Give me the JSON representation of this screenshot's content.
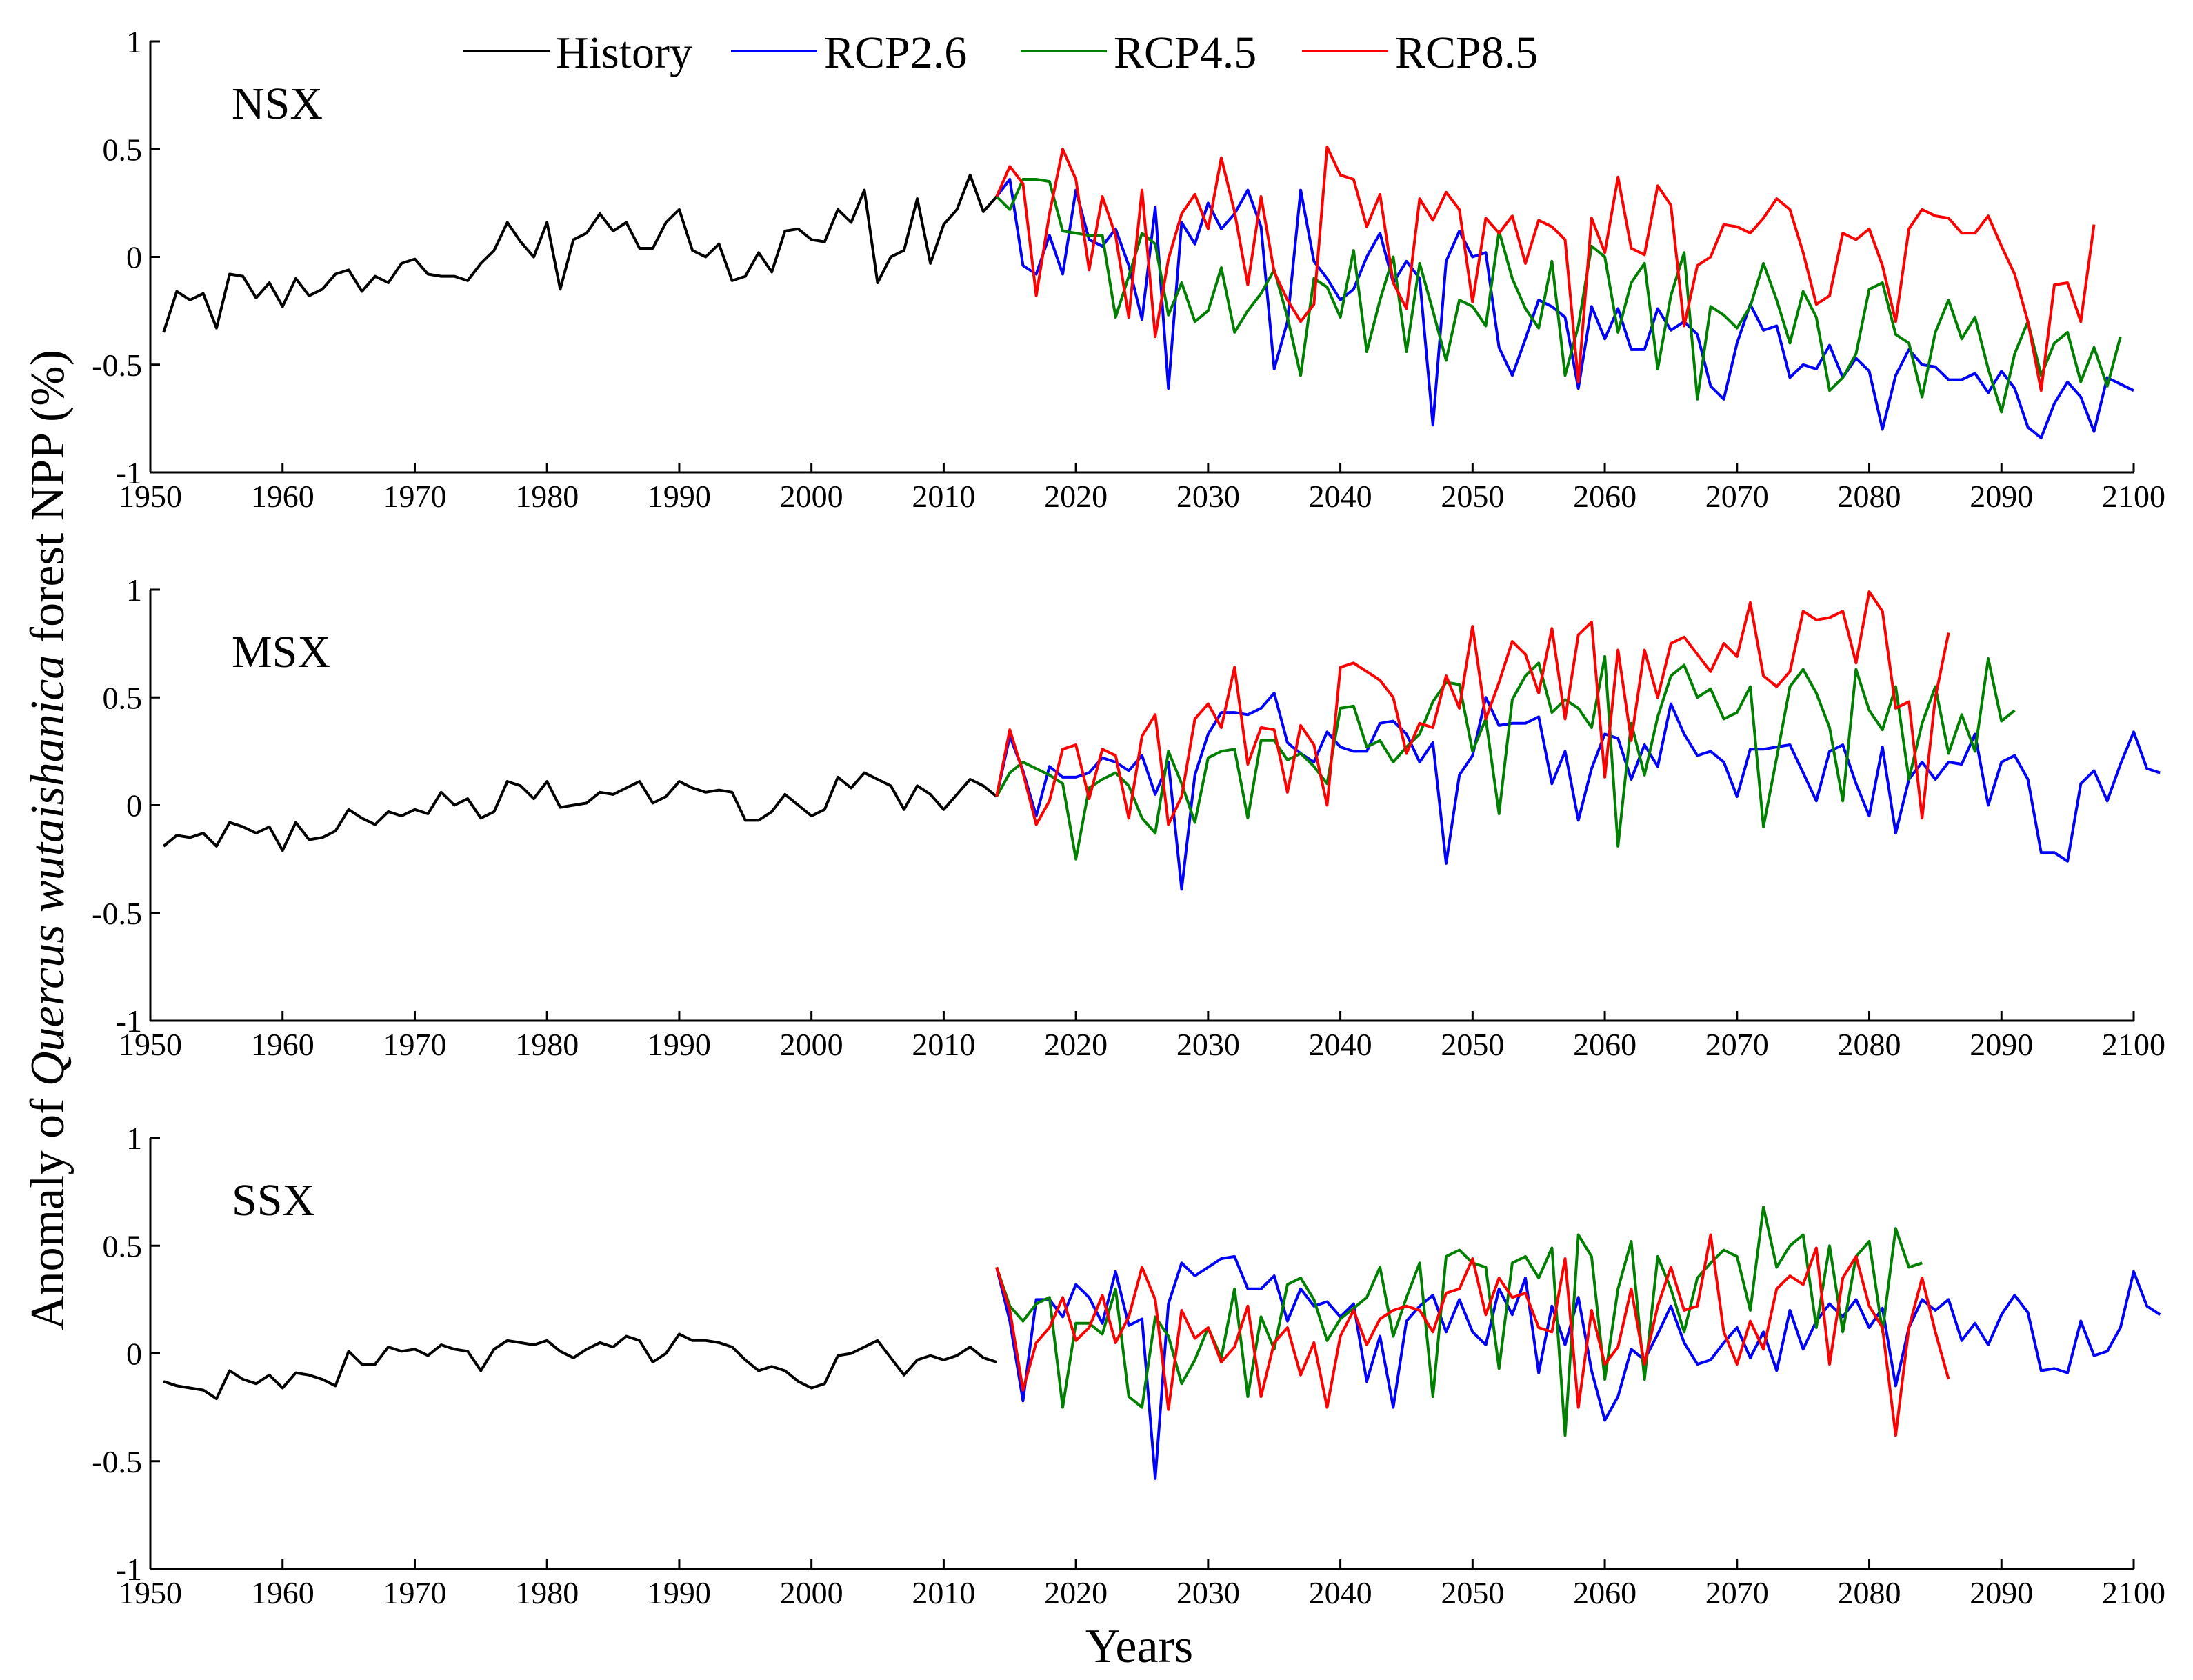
{
  "chart_data": {
    "type": "line",
    "ylabel_prefix": "Anomaly of ",
    "ylabel_species": "Quercus wutaishanica",
    "ylabel_suffix": " forest NPP (%)",
    "xlabel": "Years",
    "xlim": [
      1950,
      2100
    ],
    "ylim": [
      -1,
      1
    ],
    "xticks": [
      1950,
      1960,
      1970,
      1980,
      1990,
      2000,
      2010,
      2020,
      2030,
      2040,
      2050,
      2060,
      2070,
      2080,
      2090,
      2100
    ],
    "yticks": [
      -1,
      -0.5,
      0,
      0.5,
      1
    ],
    "ytick_labels": [
      "-1",
      "-0.5",
      "0",
      "0.5",
      "1"
    ],
    "legend": [
      {
        "name": "History",
        "color": "#000000"
      },
      {
        "name": "RCP2.6",
        "color": "#0000ff"
      },
      {
        "name": "RCP4.5",
        "color": "#008000"
      },
      {
        "name": "RCP8.5",
        "color": "#ff0000"
      }
    ],
    "history_x_start": 1951,
    "future_x_start": 2014,
    "panels": [
      {
        "label": "NSX",
        "history": [
          -0.35,
          -0.16,
          -0.2,
          -0.17,
          -0.33,
          -0.08,
          -0.09,
          -0.19,
          -0.12,
          -0.23,
          -0.1,
          -0.18,
          -0.15,
          -0.08,
          -0.06,
          -0.16,
          -0.09,
          -0.12,
          -0.03,
          -0.01,
          -0.08,
          -0.09,
          -0.09,
          -0.11,
          -0.03,
          0.03,
          0.16,
          0.07,
          0.0,
          0.16,
          -0.15,
          0.08,
          0.11,
          0.2,
          0.12,
          0.16,
          0.04,
          0.04,
          0.16,
          0.22,
          0.03,
          0.0,
          0.06,
          -0.11,
          -0.09,
          0.02,
          -0.07,
          0.12,
          0.13,
          0.08,
          0.07,
          0.22,
          0.16,
          0.31,
          -0.12,
          0.0,
          0.03,
          0.27,
          -0.03,
          0.15,
          0.22,
          0.38,
          0.21,
          0.28
        ],
        "rcp26": [
          0.28,
          0.36,
          -0.04,
          -0.08,
          0.1,
          -0.08,
          0.31,
          0.08,
          0.05,
          0.13,
          -0.04,
          -0.29,
          0.23,
          -0.61,
          0.16,
          0.06,
          0.25,
          0.13,
          0.2,
          0.31,
          0.14,
          -0.52,
          -0.3,
          0.31,
          -0.02,
          -0.1,
          -0.2,
          -0.15,
          0.0,
          0.11,
          -0.12,
          -0.02,
          -0.1,
          -0.78,
          -0.02,
          0.12,
          0.0,
          0.02,
          -0.42,
          -0.55,
          -0.38,
          -0.2,
          -0.23,
          -0.28,
          -0.61,
          -0.23,
          -0.38,
          -0.24,
          -0.43,
          -0.43,
          -0.24,
          -0.34,
          -0.3,
          -0.36,
          -0.6,
          -0.66,
          -0.4,
          -0.22,
          -0.34,
          -0.32,
          -0.56,
          -0.5,
          -0.52,
          -0.41,
          -0.56,
          -0.47,
          -0.53,
          -0.8,
          -0.55,
          -0.43,
          -0.5,
          -0.51,
          -0.57,
          -0.57,
          -0.54,
          -0.63,
          -0.53,
          -0.61,
          -0.79,
          -0.84,
          -0.68,
          -0.58,
          -0.65,
          -0.81,
          -0.56,
          -0.59,
          -0.62
        ],
        "rcp45": [
          0.28,
          0.22,
          0.36,
          0.36,
          0.35,
          0.12,
          0.11,
          0.1,
          0.1,
          -0.28,
          -0.09,
          0.11,
          0.06,
          -0.27,
          -0.12,
          -0.3,
          -0.25,
          -0.05,
          -0.35,
          -0.25,
          -0.17,
          -0.06,
          -0.28,
          -0.55,
          -0.1,
          -0.14,
          -0.28,
          0.03,
          -0.44,
          -0.2,
          0.0,
          -0.44,
          -0.03,
          -0.25,
          -0.48,
          -0.2,
          -0.23,
          -0.32,
          0.12,
          -0.1,
          -0.24,
          -0.33,
          -0.02,
          -0.55,
          -0.32,
          0.05,
          0.0,
          -0.35,
          -0.12,
          -0.03,
          -0.52,
          -0.18,
          0.02,
          -0.66,
          -0.23,
          -0.27,
          -0.33,
          -0.23,
          -0.03,
          -0.2,
          -0.4,
          -0.16,
          -0.28,
          -0.62,
          -0.56,
          -0.45,
          -0.15,
          -0.12,
          -0.36,
          -0.4,
          -0.65,
          -0.35,
          -0.2,
          -0.38,
          -0.28,
          -0.52,
          -0.72,
          -0.45,
          -0.3,
          -0.55,
          -0.4,
          -0.35,
          -0.58,
          -0.42,
          -0.6,
          -0.37
        ],
        "rcp85": [
          0.28,
          0.42,
          0.34,
          -0.18,
          0.2,
          0.5,
          0.36,
          -0.06,
          0.28,
          0.1,
          -0.28,
          0.31,
          -0.37,
          -0.01,
          0.2,
          0.29,
          0.13,
          0.46,
          0.21,
          -0.13,
          0.28,
          -0.07,
          -0.2,
          -0.3,
          -0.22,
          0.51,
          0.38,
          0.36,
          0.14,
          0.29,
          -0.12,
          -0.24,
          0.27,
          0.17,
          0.3,
          0.22,
          -0.21,
          0.18,
          0.11,
          0.19,
          -0.03,
          0.17,
          0.14,
          0.08,
          -0.58,
          0.18,
          0.02,
          0.37,
          0.04,
          0.01,
          0.33,
          0.24,
          -0.32,
          -0.04,
          0.0,
          0.15,
          0.14,
          0.11,
          0.18,
          0.27,
          0.22,
          0.02,
          -0.22,
          -0.18,
          0.11,
          0.08,
          0.13,
          -0.04,
          -0.3,
          0.13,
          0.22,
          0.19,
          0.18,
          0.11,
          0.11,
          0.19,
          0.05,
          -0.08,
          -0.3,
          -0.62,
          -0.13,
          -0.12,
          -0.3,
          0.15
        ]
      },
      {
        "label": "MSX",
        "history": [
          -0.19,
          -0.14,
          -0.15,
          -0.13,
          -0.19,
          -0.08,
          -0.1,
          -0.13,
          -0.1,
          -0.21,
          -0.08,
          -0.16,
          -0.15,
          -0.12,
          -0.02,
          -0.06,
          -0.09,
          -0.03,
          -0.05,
          -0.02,
          -0.04,
          0.06,
          0.0,
          0.03,
          -0.06,
          -0.03,
          0.11,
          0.09,
          0.03,
          0.11,
          -0.01,
          0.0,
          0.01,
          0.06,
          0.05,
          0.08,
          0.11,
          0.01,
          0.04,
          0.11,
          0.08,
          0.06,
          0.07,
          0.06,
          -0.07,
          -0.07,
          -0.03,
          0.05,
          0.0,
          -0.05,
          -0.02,
          0.13,
          0.08,
          0.15,
          0.12,
          0.09,
          -0.02,
          0.09,
          0.05,
          -0.02,
          0.05,
          0.12,
          0.09,
          0.04
        ],
        "rcp26": [
          0.04,
          0.32,
          0.16,
          -0.05,
          0.18,
          0.13,
          0.13,
          0.15,
          0.22,
          0.2,
          0.16,
          0.23,
          0.05,
          0.2,
          -0.39,
          0.14,
          0.33,
          0.43,
          0.43,
          0.42,
          0.45,
          0.52,
          0.29,
          0.24,
          0.2,
          0.34,
          0.27,
          0.25,
          0.25,
          0.38,
          0.39,
          0.33,
          0.2,
          0.29,
          -0.27,
          0.14,
          0.23,
          0.5,
          0.37,
          0.38,
          0.38,
          0.41,
          0.1,
          0.25,
          -0.07,
          0.17,
          0.33,
          0.31,
          0.12,
          0.28,
          0.18,
          0.47,
          0.33,
          0.23,
          0.25,
          0.2,
          0.04,
          0.26,
          0.26,
          0.27,
          0.28,
          0.15,
          0.02,
          0.25,
          0.28,
          0.1,
          -0.05,
          0.27,
          -0.13,
          0.12,
          0.2,
          0.12,
          0.2,
          0.19,
          0.33,
          0.0,
          0.2,
          0.23,
          0.12,
          -0.22,
          -0.22,
          -0.26,
          0.1,
          0.16,
          0.02,
          0.19,
          0.34,
          0.17,
          0.15
        ],
        "rcp45": [
          0.04,
          0.15,
          0.2,
          0.17,
          0.14,
          0.1,
          -0.25,
          0.08,
          0.12,
          0.15,
          0.09,
          -0.06,
          -0.13,
          0.25,
          0.1,
          -0.08,
          0.22,
          0.25,
          0.26,
          -0.06,
          0.3,
          0.3,
          0.21,
          0.24,
          0.18,
          0.1,
          0.45,
          0.46,
          0.27,
          0.3,
          0.2,
          0.27,
          0.33,
          0.48,
          0.57,
          0.56,
          0.25,
          0.4,
          -0.04,
          0.49,
          0.6,
          0.66,
          0.43,
          0.49,
          0.45,
          0.36,
          0.69,
          -0.19,
          0.38,
          0.14,
          0.41,
          0.6,
          0.65,
          0.5,
          0.54,
          0.4,
          0.43,
          0.55,
          -0.1,
          0.22,
          0.55,
          0.63,
          0.52,
          0.36,
          0.02,
          0.63,
          0.44,
          0.35,
          0.55,
          0.12,
          0.38,
          0.55,
          0.24,
          0.42,
          0.25,
          0.68,
          0.39,
          0.44
        ],
        "rcp85": [
          0.04,
          0.35,
          0.15,
          -0.09,
          0.02,
          0.26,
          0.28,
          0.03,
          0.26,
          0.23,
          -0.06,
          0.32,
          0.42,
          -0.09,
          0.04,
          0.4,
          0.47,
          0.36,
          0.64,
          0.19,
          0.36,
          0.35,
          0.06,
          0.37,
          0.28,
          0.0,
          0.64,
          0.66,
          0.62,
          0.58,
          0.5,
          0.24,
          0.38,
          0.36,
          0.6,
          0.45,
          0.83,
          0.4,
          0.57,
          0.76,
          0.7,
          0.52,
          0.82,
          0.4,
          0.79,
          0.85,
          0.13,
          0.72,
          0.3,
          0.72,
          0.5,
          0.75,
          0.78,
          0.7,
          0.62,
          0.75,
          0.69,
          0.94,
          0.6,
          0.55,
          0.62,
          0.9,
          0.86,
          0.87,
          0.9,
          0.66,
          0.99,
          0.9,
          0.45,
          0.48,
          -0.06,
          0.5,
          0.8
        ]
      },
      {
        "label": "SSX",
        "history": [
          -0.13,
          -0.15,
          -0.16,
          -0.17,
          -0.21,
          -0.08,
          -0.12,
          -0.14,
          -0.1,
          -0.16,
          -0.09,
          -0.1,
          -0.12,
          -0.15,
          0.01,
          -0.05,
          -0.05,
          0.03,
          0.01,
          0.02,
          -0.01,
          0.04,
          0.02,
          0.01,
          -0.08,
          0.02,
          0.06,
          0.05,
          0.04,
          0.06,
          0.01,
          -0.02,
          0.02,
          0.05,
          0.03,
          0.08,
          0.06,
          -0.04,
          0.0,
          0.09,
          0.06,
          0.06,
          0.05,
          0.03,
          -0.03,
          -0.08,
          -0.06,
          -0.08,
          -0.13,
          -0.16,
          -0.14,
          -0.01,
          0.0,
          0.03,
          0.06,
          -0.02,
          -0.1,
          -0.03,
          -0.01,
          -0.03,
          -0.01,
          0.03,
          -0.02,
          -0.04
        ],
        "rcp26": [
          0.4,
          0.15,
          -0.22,
          0.25,
          0.25,
          0.17,
          0.32,
          0.26,
          0.14,
          0.38,
          0.13,
          0.16,
          -0.58,
          0.23,
          0.42,
          0.36,
          0.4,
          0.44,
          0.45,
          0.3,
          0.3,
          0.36,
          0.15,
          0.3,
          0.22,
          0.24,
          0.17,
          0.23,
          -0.13,
          0.08,
          -0.25,
          0.15,
          0.22,
          0.27,
          0.1,
          0.25,
          0.1,
          0.04,
          0.3,
          0.18,
          0.35,
          -0.09,
          0.22,
          0.04,
          0.26,
          -0.08,
          -0.31,
          -0.2,
          0.02,
          -0.03,
          0.09,
          0.22,
          0.05,
          -0.05,
          -0.03,
          0.05,
          0.12,
          -0.02,
          0.1,
          -0.08,
          0.2,
          0.02,
          0.15,
          0.23,
          0.17,
          0.25,
          0.12,
          0.21,
          -0.15,
          0.12,
          0.25,
          0.2,
          0.25,
          0.06,
          0.14,
          0.04,
          0.18,
          0.27,
          0.19,
          -0.08,
          -0.07,
          -0.09,
          0.15,
          -0.01,
          0.01,
          0.12,
          0.38,
          0.22,
          0.18
        ],
        "rcp45": [
          0.4,
          0.22,
          0.15,
          0.23,
          0.26,
          -0.25,
          0.14,
          0.14,
          0.09,
          0.3,
          -0.2,
          -0.25,
          0.17,
          0.08,
          -0.14,
          -0.03,
          0.12,
          -0.02,
          0.3,
          -0.2,
          0.17,
          0.02,
          0.32,
          0.35,
          0.25,
          0.06,
          0.16,
          0.21,
          0.26,
          0.4,
          0.08,
          0.26,
          0.42,
          -0.2,
          0.45,
          0.48,
          0.42,
          0.4,
          -0.07,
          0.42,
          0.45,
          0.35,
          0.49,
          -0.38,
          0.55,
          0.45,
          -0.12,
          0.3,
          0.52,
          -0.12,
          0.45,
          0.3,
          0.1,
          0.35,
          0.42,
          0.48,
          0.45,
          0.2,
          0.68,
          0.4,
          0.5,
          0.55,
          0.12,
          0.5,
          0.1,
          0.45,
          0.52,
          0.1,
          0.58,
          0.4,
          0.42
        ],
        "rcp85": [
          0.4,
          0.2,
          -0.17,
          0.05,
          0.12,
          0.26,
          0.06,
          0.12,
          0.27,
          0.05,
          0.17,
          0.4,
          0.25,
          -0.26,
          0.2,
          0.07,
          0.12,
          -0.04,
          0.03,
          0.22,
          -0.2,
          0.05,
          0.12,
          -0.1,
          0.05,
          -0.25,
          0.08,
          0.2,
          0.04,
          0.16,
          0.2,
          0.22,
          0.2,
          0.1,
          0.28,
          0.3,
          0.44,
          0.18,
          0.35,
          0.26,
          0.28,
          0.12,
          0.1,
          0.44,
          -0.25,
          0.2,
          -0.05,
          0.03,
          0.3,
          -0.05,
          0.22,
          0.4,
          0.2,
          0.22,
          0.55,
          0.1,
          -0.05,
          0.15,
          0.02,
          0.3,
          0.36,
          0.32,
          0.49,
          -0.05,
          0.35,
          0.45,
          0.22,
          0.12,
          -0.38,
          0.12,
          0.35,
          0.1,
          -0.12
        ]
      }
    ]
  }
}
